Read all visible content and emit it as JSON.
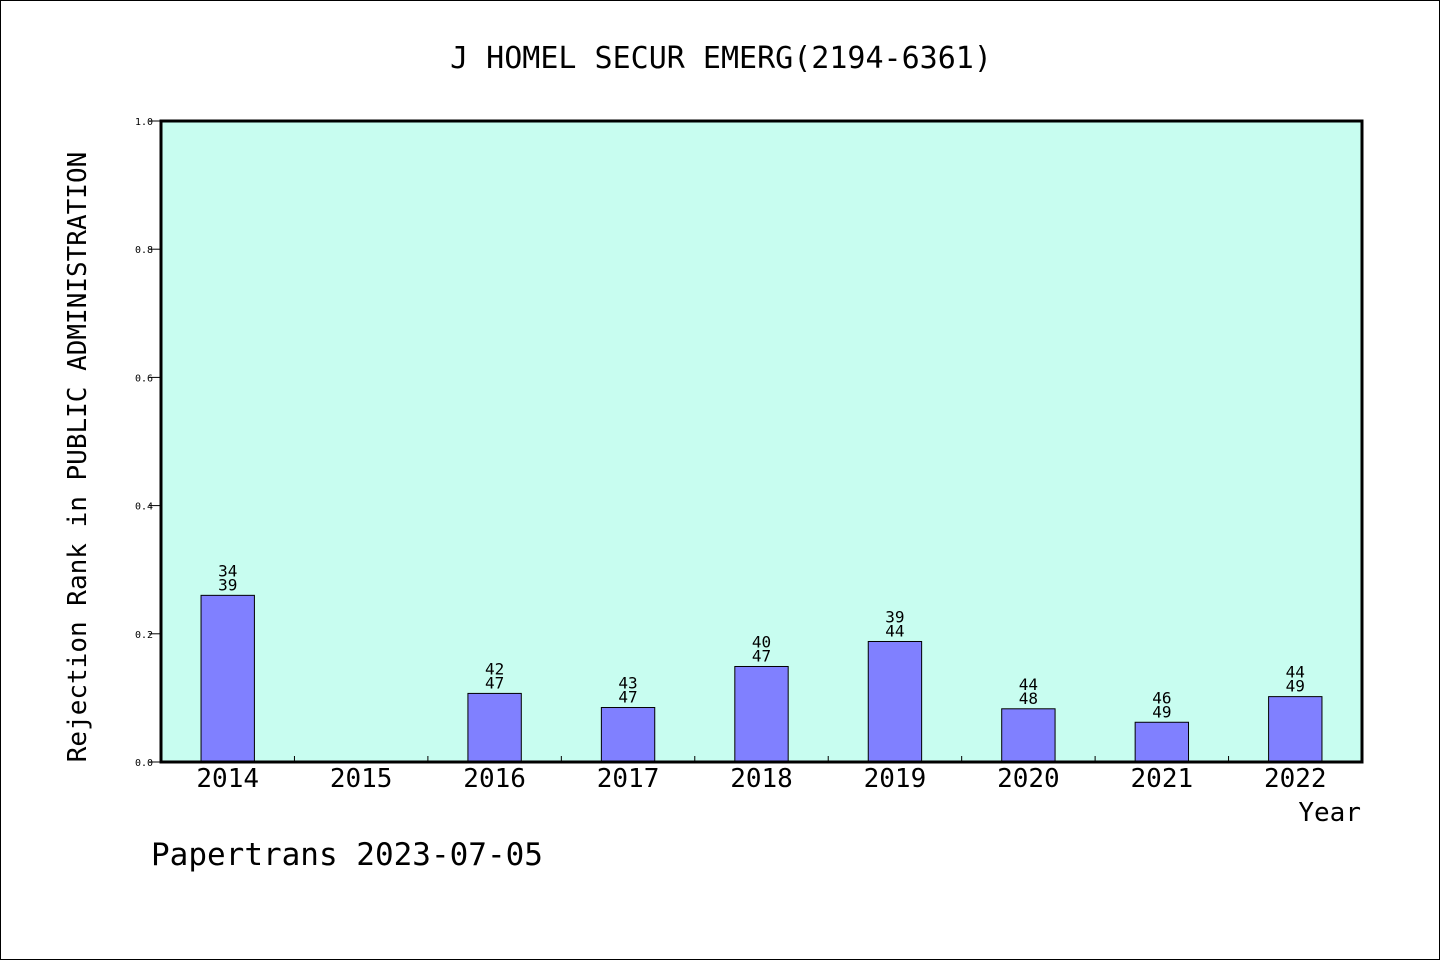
{
  "chart_data": {
    "type": "bar",
    "title": "J HOMEL SECUR EMERG(2194-6361)",
    "xlabel": "Year",
    "ylabel": "Rejection Rank in PUBLIC ADMINISTRATION",
    "ylim": [
      0,
      1.0
    ],
    "yticks": [
      "0.0",
      "0.2",
      "0.4",
      "0.6",
      "0.8",
      "1.0"
    ],
    "categories": [
      "2014",
      "2015",
      "2016",
      "2017",
      "2018",
      "2019",
      "2020",
      "2021",
      "2022"
    ],
    "values": [
      0.26,
      null,
      0.107,
      0.085,
      0.149,
      0.188,
      0.083,
      0.062,
      0.102
    ],
    "label_top": [
      "34",
      "",
      "42",
      "43",
      "40",
      "39",
      "44",
      "46",
      "44"
    ],
    "label_bottom": [
      "39",
      "",
      "47",
      "47",
      "47",
      "44",
      "48",
      "49",
      "49"
    ],
    "colors": {
      "plot_bg": "#c8fdf0",
      "bar": "#8080ff",
      "axis": "#000000"
    }
  },
  "footer": "Papertrans 2023-07-05"
}
